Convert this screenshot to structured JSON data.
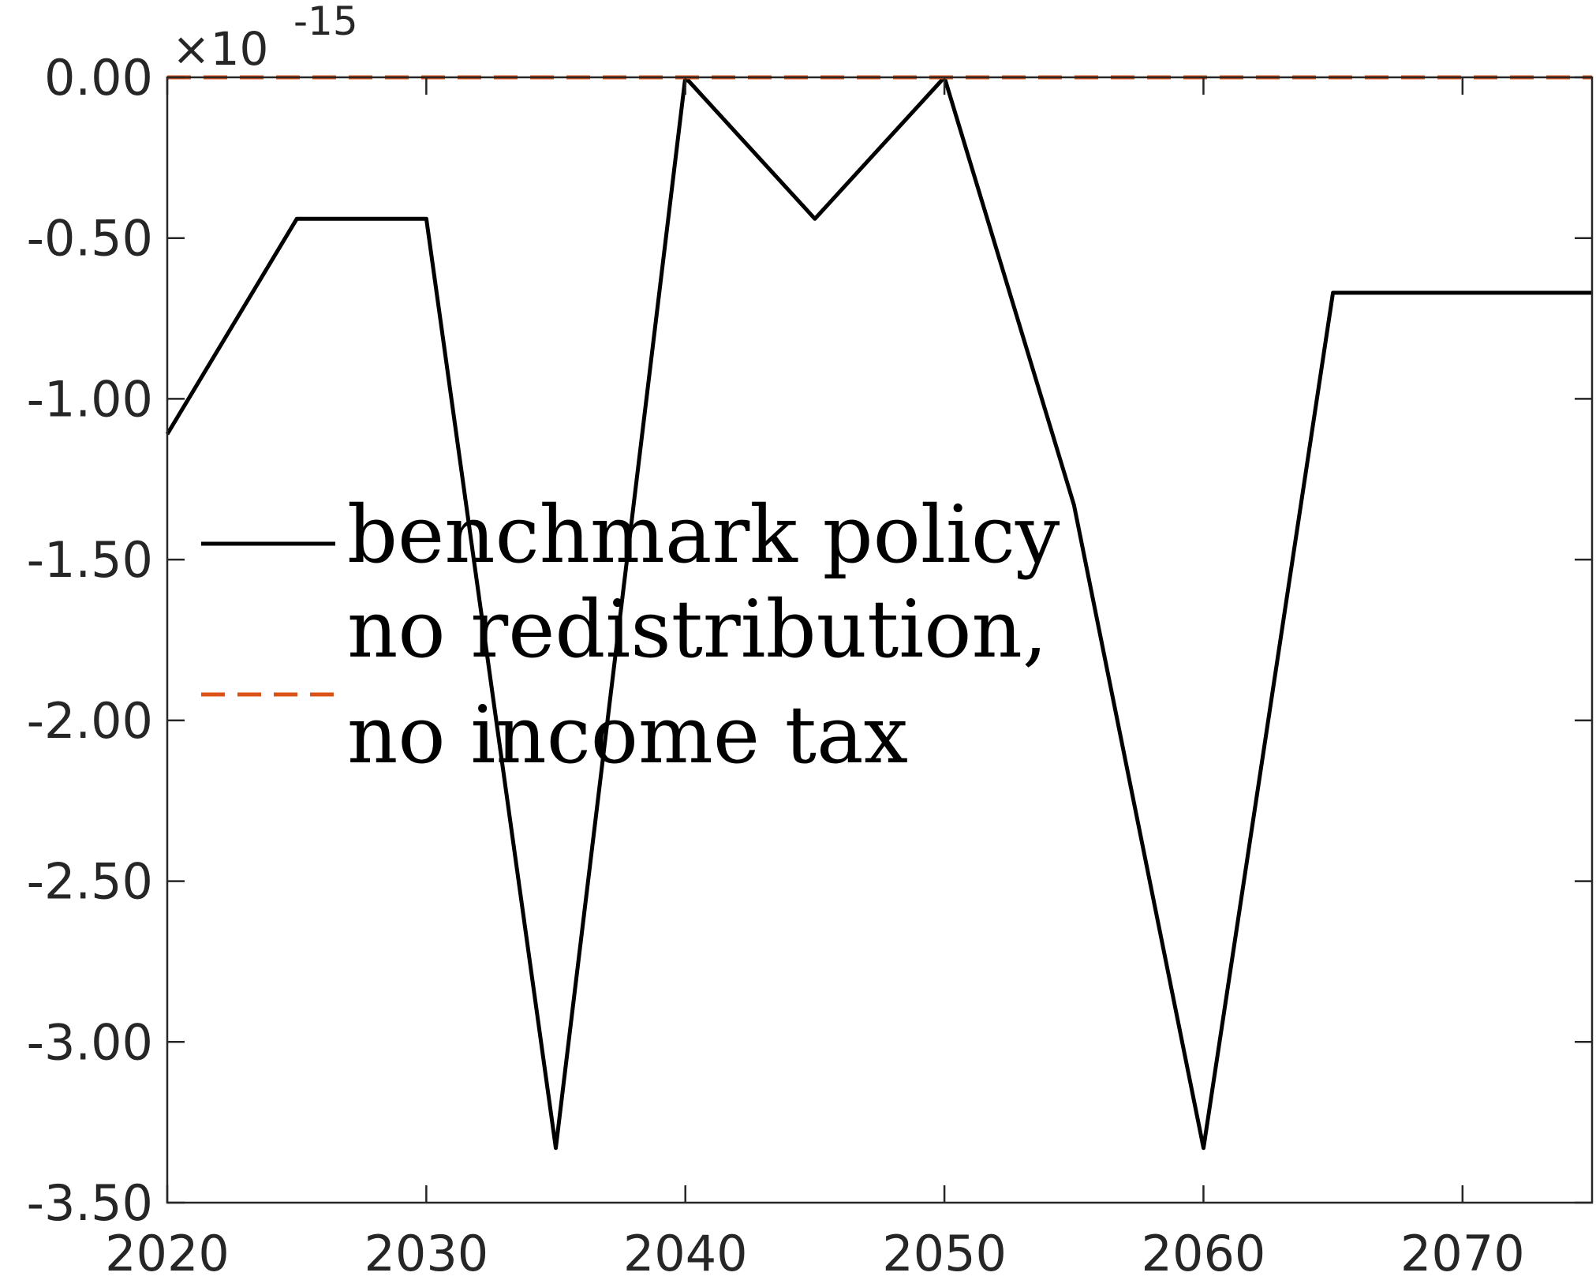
{
  "chart_data": {
    "type": "line",
    "title": "",
    "xlabel": "",
    "ylabel": "",
    "y_exponent": "×10",
    "y_exponent_power": "-15",
    "xlim": [
      2020,
      2075
    ],
    "ylim": [
      -3.5,
      0
    ],
    "x_ticks": [
      2020,
      2030,
      2040,
      2050,
      2060,
      2070
    ],
    "x_tick_labels": [
      "2020",
      "2030",
      "2040",
      "2050",
      "2060",
      "2070"
    ],
    "y_ticks": [
      0,
      -0.5,
      -1,
      -1.5,
      -2,
      -2.5,
      -3,
      -3.5
    ],
    "y_tick_labels": [
      "0.00",
      "-0.50",
      "-1.00",
      "-1.50",
      "-2.00",
      "-2.50",
      "-3.00",
      "-3.50"
    ],
    "grid": false,
    "legend_position": "center-left",
    "x": [
      2020,
      2025,
      2030,
      2035,
      2040,
      2045,
      2050,
      2055,
      2060,
      2065,
      2075
    ],
    "series": [
      {
        "name": "benchmark policy",
        "color": "#000000",
        "dash": "solid",
        "values": [
          -1.11,
          -0.44,
          -0.44,
          -3.33,
          0.0,
          -0.44,
          0.0,
          -1.33,
          -3.33,
          -0.67,
          -0.67
        ]
      },
      {
        "name_lines": [
          "no redistribution,",
          "no income tax"
        ],
        "color": "#D95319",
        "dash": "dashed",
        "values": [
          0,
          0,
          0,
          0,
          0,
          0,
          0,
          0,
          0,
          0,
          0
        ]
      }
    ]
  }
}
